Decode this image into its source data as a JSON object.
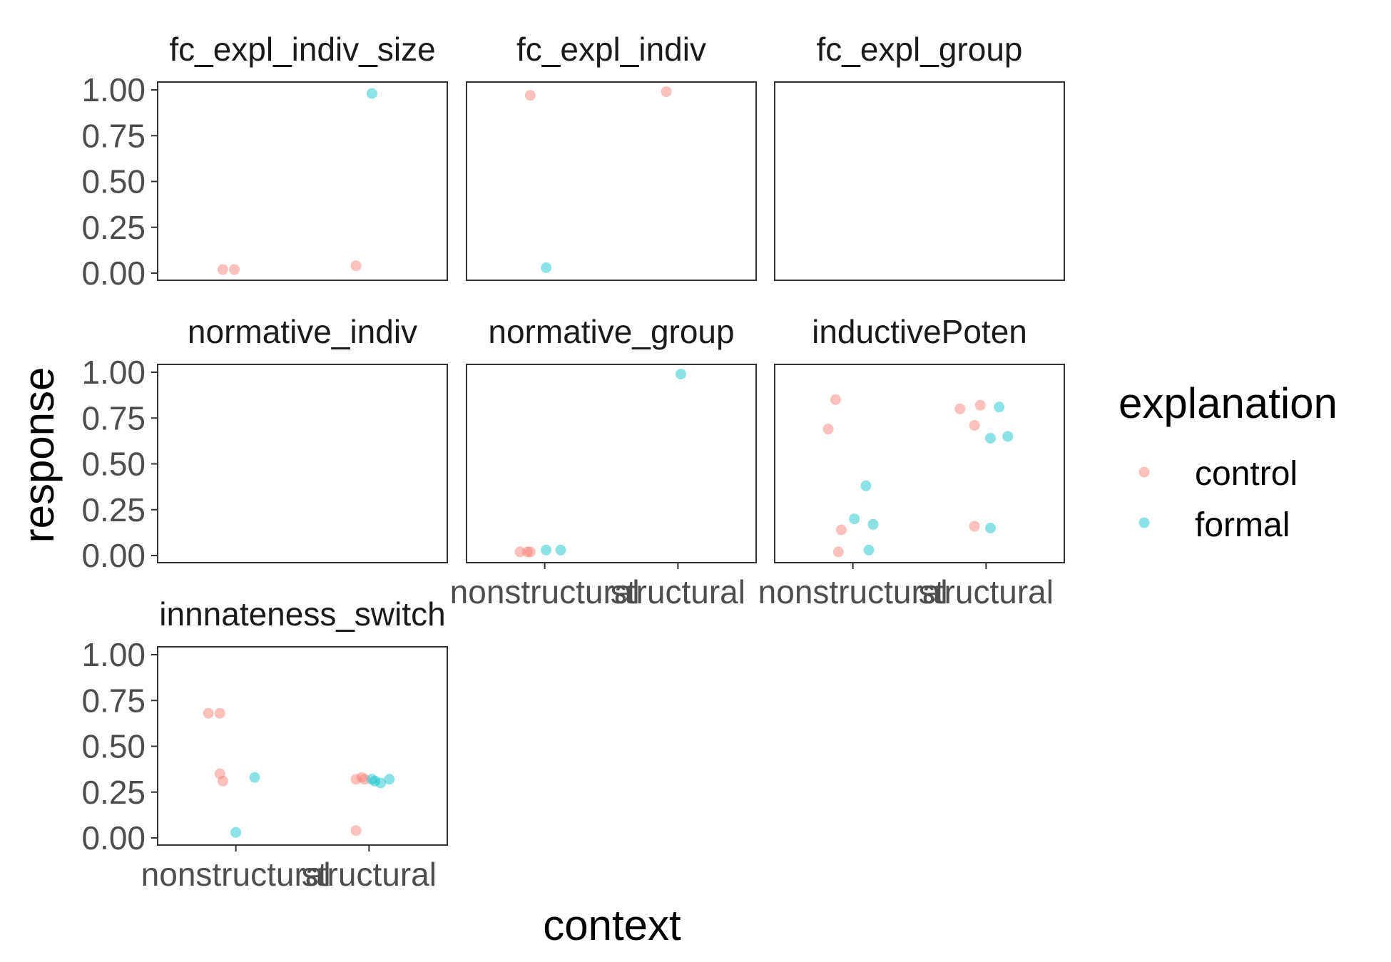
{
  "chart_data": {
    "type": "scatter",
    "facet_layout": "3 columns, 3 rows",
    "x_axis": {
      "label": "context",
      "categories": [
        "nonstructural",
        "structural"
      ]
    },
    "y_axis": {
      "label": "response",
      "ylim": [
        0,
        1
      ],
      "ticks": [
        "0.00",
        "0.25",
        "0.50",
        "0.75",
        "1.00"
      ]
    },
    "legend": {
      "title": "explanation",
      "placement": "right",
      "entries": [
        {
          "name": "control",
          "color": "#F8766D"
        },
        {
          "name": "formal",
          "color": "#00BFC4"
        }
      ]
    },
    "grid": false,
    "jitter": true,
    "point_alpha": 0.45,
    "panels": [
      {
        "title": "fc_expl_indiv_size",
        "row": 0,
        "col": 0,
        "show_x_axis": false,
        "points": [
          {
            "x": "nonstructural",
            "dx": -0.09,
            "y": 0.02,
            "series": "control"
          },
          {
            "x": "nonstructural",
            "dx": -0.01,
            "y": 0.02,
            "series": "control"
          },
          {
            "x": "structural",
            "dx": -0.09,
            "y": 0.04,
            "series": "control"
          },
          {
            "x": "structural",
            "dx": 0.02,
            "y": 0.98,
            "series": "formal"
          }
        ]
      },
      {
        "title": "fc_expl_indiv",
        "row": 0,
        "col": 1,
        "show_x_axis": false,
        "points": [
          {
            "x": "nonstructural",
            "dx": -0.1,
            "y": 0.97,
            "series": "control"
          },
          {
            "x": "structural",
            "dx": -0.08,
            "y": 0.99,
            "series": "control"
          },
          {
            "x": "nonstructural",
            "dx": 0.01,
            "y": 0.03,
            "series": "formal"
          }
        ]
      },
      {
        "title": "fc_expl_group",
        "row": 0,
        "col": 2,
        "show_x_axis": false,
        "points": []
      },
      {
        "title": "normative_indiv",
        "row": 1,
        "col": 0,
        "show_x_axis": false,
        "points": []
      },
      {
        "title": "normative_group",
        "row": 1,
        "col": 1,
        "show_x_axis": true,
        "points": [
          {
            "x": "nonstructural",
            "dx": -0.17,
            "y": 0.02,
            "series": "control"
          },
          {
            "x": "nonstructural",
            "dx": -0.12,
            "y": 0.02,
            "series": "control"
          },
          {
            "x": "nonstructural",
            "dx": -0.1,
            "y": 0.02,
            "series": "control"
          },
          {
            "x": "nonstructural",
            "dx": 0.01,
            "y": 0.03,
            "series": "formal"
          },
          {
            "x": "nonstructural",
            "dx": 0.11,
            "y": 0.03,
            "series": "formal"
          },
          {
            "x": "structural",
            "dx": 0.02,
            "y": 0.99,
            "series": "formal"
          }
        ]
      },
      {
        "title": "inductivePoten",
        "row": 1,
        "col": 2,
        "show_x_axis": true,
        "points": [
          {
            "x": "nonstructural",
            "dx": -0.12,
            "y": 0.85,
            "series": "control"
          },
          {
            "x": "nonstructural",
            "dx": -0.17,
            "y": 0.69,
            "series": "control"
          },
          {
            "x": "nonstructural",
            "dx": -0.08,
            "y": 0.14,
            "series": "control"
          },
          {
            "x": "nonstructural",
            "dx": -0.1,
            "y": 0.02,
            "series": "control"
          },
          {
            "x": "structural",
            "dx": -0.18,
            "y": 0.8,
            "series": "control"
          },
          {
            "x": "structural",
            "dx": -0.04,
            "y": 0.82,
            "series": "control"
          },
          {
            "x": "structural",
            "dx": -0.08,
            "y": 0.71,
            "series": "control"
          },
          {
            "x": "structural",
            "dx": -0.08,
            "y": 0.16,
            "series": "control"
          },
          {
            "x": "nonstructural",
            "dx": 0.09,
            "y": 0.38,
            "series": "formal"
          },
          {
            "x": "nonstructural",
            "dx": 0.01,
            "y": 0.2,
            "series": "formal"
          },
          {
            "x": "nonstructural",
            "dx": 0.14,
            "y": 0.17,
            "series": "formal"
          },
          {
            "x": "nonstructural",
            "dx": 0.11,
            "y": 0.03,
            "series": "formal"
          },
          {
            "x": "structural",
            "dx": 0.09,
            "y": 0.81,
            "series": "formal"
          },
          {
            "x": "structural",
            "dx": 0.03,
            "y": 0.64,
            "series": "formal"
          },
          {
            "x": "structural",
            "dx": 0.15,
            "y": 0.65,
            "series": "formal"
          },
          {
            "x": "structural",
            "dx": 0.03,
            "y": 0.15,
            "series": "formal"
          }
        ]
      },
      {
        "title": "innnateness_switch",
        "row": 2,
        "col": 0,
        "show_x_axis": true,
        "points": [
          {
            "x": "nonstructural",
            "dx": -0.19,
            "y": 0.68,
            "series": "control"
          },
          {
            "x": "nonstructural",
            "dx": -0.11,
            "y": 0.68,
            "series": "control"
          },
          {
            "x": "nonstructural",
            "dx": -0.11,
            "y": 0.35,
            "series": "control"
          },
          {
            "x": "nonstructural",
            "dx": -0.09,
            "y": 0.31,
            "series": "control"
          },
          {
            "x": "structural",
            "dx": -0.09,
            "y": 0.32,
            "series": "control"
          },
          {
            "x": "structural",
            "dx": -0.05,
            "y": 0.33,
            "series": "control"
          },
          {
            "x": "structural",
            "dx": -0.03,
            "y": 0.32,
            "series": "control"
          },
          {
            "x": "structural",
            "dx": -0.09,
            "y": 0.04,
            "series": "control"
          },
          {
            "x": "nonstructural",
            "dx": 0.13,
            "y": 0.33,
            "series": "formal"
          },
          {
            "x": "nonstructural",
            "dx": 0.0,
            "y": 0.03,
            "series": "formal"
          },
          {
            "x": "structural",
            "dx": 0.02,
            "y": 0.32,
            "series": "formal"
          },
          {
            "x": "structural",
            "dx": 0.04,
            "y": 0.31,
            "series": "formal"
          },
          {
            "x": "structural",
            "dx": 0.08,
            "y": 0.3,
            "series": "formal"
          },
          {
            "x": "structural",
            "dx": 0.14,
            "y": 0.32,
            "series": "formal"
          }
        ]
      }
    ]
  }
}
